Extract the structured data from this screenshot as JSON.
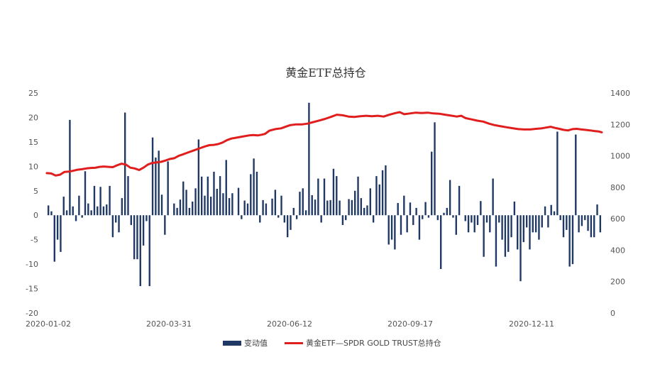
{
  "chart_data": {
    "type": "bar+line",
    "title": "黄金ETF总持仓",
    "x_tick_labels": [
      "2020-01-02",
      "2020-03-31",
      "2020-06-12",
      "2020-09-17",
      "2020-12-11"
    ],
    "y_left": {
      "ylim": [
        -20,
        25
      ],
      "ticks": [
        "25",
        "20",
        "15",
        "10",
        "5",
        "0",
        "-5",
        "-10",
        "-15",
        "-20"
      ]
    },
    "y_right": {
      "ylim": [
        0,
        1400
      ],
      "ticks": [
        "1400",
        "1200",
        "1000",
        "800",
        "600",
        "400",
        "200",
        "0"
      ]
    },
    "grid": false,
    "legend_position": "bottom-center",
    "series": [
      {
        "name": "变动值",
        "kind": "bar",
        "axis": "left",
        "color": "#1f3864",
        "values": [
          2,
          0.8,
          -9.5,
          -5,
          -7.5,
          3.8,
          1,
          19.5,
          1.8,
          -1.2,
          4,
          -0.5,
          9,
          2.4,
          1,
          6,
          1.8,
          5.8,
          1.8,
          2.2,
          6,
          -4.5,
          -1.5,
          -3.5,
          3.5,
          21,
          8,
          -2,
          -9,
          -9,
          -14.5,
          -6.2,
          -1.2,
          -14.5,
          15.9,
          11.8,
          13.2,
          4.2,
          -4,
          11,
          0,
          2.4,
          1.5,
          3.2,
          6.9,
          5.2,
          1.5,
          2.8,
          5.5,
          15.5,
          7.9,
          4,
          7.9,
          3.8,
          8.9,
          5.4,
          8,
          4.5,
          11.3,
          3.5,
          4.5,
          0,
          5.6,
          -0.8,
          3,
          2.4,
          8.4,
          11.6,
          8.9,
          -1.5,
          3.1,
          2.4,
          0,
          3.4,
          5.2,
          -0.5,
          4,
          -1.5,
          -4.5,
          -3,
          1.5,
          -0.8,
          4.8,
          5.5,
          1,
          23,
          4.1,
          3.2,
          7.5,
          -1.5,
          7.5,
          3,
          3.1,
          9.5,
          8,
          3,
          -2,
          -1,
          3.3,
          3.1,
          5,
          7.9,
          3.5,
          1.5,
          2,
          5.5,
          -1.5,
          8,
          6.3,
          9.2,
          10.2,
          -6,
          -5,
          -7,
          2.5,
          -4,
          4,
          -3.5,
          2.6,
          -2,
          1.5,
          -5,
          -0.8,
          2.7,
          -0.5,
          13,
          19,
          -1,
          -11,
          0.5,
          1.5,
          7.2,
          -0.5,
          -4,
          6,
          0,
          -1.2,
          -3.5,
          -1.5,
          -3.5,
          -2,
          2.9,
          -8.5,
          -1.5,
          -3.5,
          7.5,
          -10.5,
          -1.5,
          -5,
          -8.5,
          -7.5,
          -4.5,
          2.8,
          -7,
          -13.5,
          -5.5,
          -2.5,
          -7,
          -3.5,
          -3.5,
          -5,
          -2.5,
          1.8,
          -2.5,
          2.1,
          0.8,
          17.1,
          -1,
          -4.5,
          -3,
          -10.5,
          -10,
          16.5,
          -3.5,
          -2.2,
          -1,
          -3.2,
          -4.5,
          -4.5,
          2.2,
          -3.5
        ],
        "legend_label": "变动值"
      },
      {
        "name": "黄金ETF—SPDR GOLD TRUST总持仓",
        "kind": "line",
        "axis": "right",
        "color": "#e01e1e",
        "keypoints": [
          [
            0,
            890
          ],
          [
            3,
            888
          ],
          [
            6,
            875
          ],
          [
            9,
            880
          ],
          [
            12,
            898
          ],
          [
            15,
            900
          ],
          [
            18,
            905
          ],
          [
            21,
            912
          ],
          [
            24,
            915
          ],
          [
            27,
            920
          ],
          [
            30,
            923
          ],
          [
            33,
            924
          ],
          [
            36,
            930
          ],
          [
            39,
            932
          ],
          [
            42,
            930
          ],
          [
            45,
            928
          ],
          [
            48,
            940
          ],
          [
            51,
            950
          ],
          [
            54,
            945
          ],
          [
            57,
            925
          ],
          [
            60,
            920
          ],
          [
            63,
            910
          ],
          [
            66,
            925
          ],
          [
            69,
            945
          ],
          [
            72,
            955
          ],
          [
            75,
            958
          ],
          [
            78,
            962
          ],
          [
            81,
            970
          ],
          [
            84,
            980
          ],
          [
            87,
            985
          ],
          [
            90,
            1000
          ],
          [
            93,
            1010
          ],
          [
            96,
            1020
          ],
          [
            99,
            1030
          ],
          [
            102,
            1040
          ],
          [
            105,
            1050
          ],
          [
            108,
            1060
          ],
          [
            111,
            1068
          ],
          [
            114,
            1070
          ],
          [
            117,
            1075
          ],
          [
            120,
            1085
          ],
          [
            123,
            1100
          ],
          [
            126,
            1110
          ],
          [
            129,
            1115
          ],
          [
            132,
            1120
          ],
          [
            135,
            1125
          ],
          [
            138,
            1130
          ],
          [
            141,
            1132
          ],
          [
            144,
            1130
          ],
          [
            147,
            1135
          ],
          [
            149,
            1140
          ],
          [
            152,
            1160
          ],
          [
            156,
            1170
          ],
          [
            160,
            1175
          ],
          [
            163,
            1185
          ],
          [
            166,
            1195
          ],
          [
            170,
            1200
          ],
          [
            174,
            1200
          ],
          [
            178,
            1205
          ],
          [
            182,
            1215
          ],
          [
            186,
            1225
          ],
          [
            190,
            1235
          ],
          [
            194,
            1248
          ],
          [
            198,
            1262
          ],
          [
            202,
            1258
          ],
          [
            206,
            1250
          ],
          [
            210,
            1248
          ],
          [
            214,
            1252
          ],
          [
            218,
            1255
          ],
          [
            222,
            1252
          ],
          [
            226,
            1255
          ],
          [
            230,
            1250
          ],
          [
            234,
            1262
          ],
          [
            238,
            1272
          ],
          [
            241,
            1278
          ],
          [
            244,
            1265
          ],
          [
            248,
            1270
          ],
          [
            252,
            1275
          ],
          [
            256,
            1272
          ],
          [
            260,
            1275
          ],
          [
            264,
            1270
          ],
          [
            268,
            1268
          ],
          [
            272,
            1262
          ],
          [
            276,
            1256
          ],
          [
            280,
            1250
          ],
          [
            283,
            1255
          ],
          [
            286,
            1240
          ],
          [
            290,
            1232
          ],
          [
            294,
            1224
          ],
          [
            298,
            1218
          ],
          [
            302,
            1205
          ],
          [
            306,
            1195
          ],
          [
            310,
            1188
          ],
          [
            314,
            1182
          ],
          [
            318,
            1176
          ],
          [
            322,
            1170
          ],
          [
            326,
            1168
          ],
          [
            330,
            1168
          ],
          [
            334,
            1172
          ],
          [
            338,
            1175
          ],
          [
            341,
            1180
          ],
          [
            344,
            1185
          ],
          [
            347,
            1178
          ],
          [
            350,
            1172
          ],
          [
            353,
            1165
          ],
          [
            356,
            1162
          ],
          [
            359,
            1170
          ],
          [
            362,
            1172
          ],
          [
            365,
            1168
          ],
          [
            368,
            1165
          ],
          [
            371,
            1162
          ],
          [
            374,
            1158
          ],
          [
            377,
            1155
          ],
          [
            379,
            1150
          ]
        ],
        "x_max": 379,
        "legend_label": "黄金ETF—SPDR GOLD TRUST总持仓"
      }
    ]
  }
}
